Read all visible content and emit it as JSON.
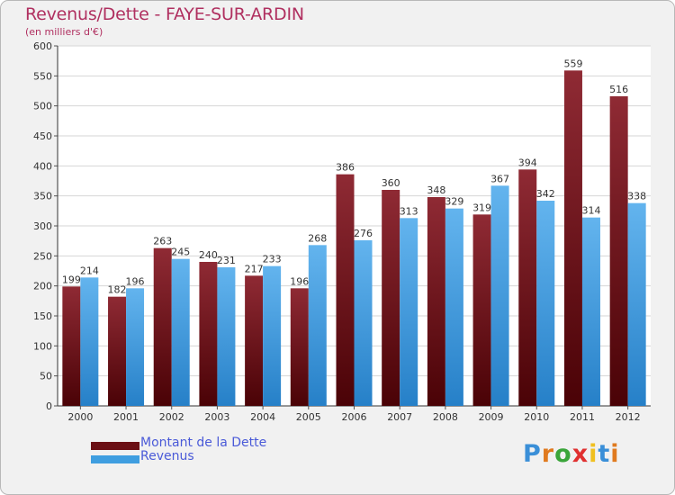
{
  "header": {
    "title": "Revenus/Dette - FAYE-SUR-ARDIN",
    "subtitle": "(en milliers d'€)"
  },
  "legend": {
    "items": [
      {
        "label": "Montant de la Dette",
        "color": "#6b0f14"
      },
      {
        "label": "Revenus",
        "color": "#3f9ee0"
      }
    ]
  },
  "logo": {
    "text": "Proxiti"
  },
  "chart_data": {
    "type": "bar",
    "title": "Revenus/Dette - FAYE-SUR-ARDIN",
    "ylabel": "(en milliers d'€)",
    "xlabel": "",
    "categories": [
      "2000",
      "2001",
      "2002",
      "2003",
      "2004",
      "2005",
      "2006",
      "2007",
      "2008",
      "2009",
      "2010",
      "2011",
      "2012"
    ],
    "series": [
      {
        "name": "Montant de la Dette",
        "values": [
          199,
          182,
          263,
          240,
          217,
          196,
          386,
          360,
          348,
          319,
          394,
          559,
          516
        ]
      },
      {
        "name": "Revenus",
        "values": [
          214,
          196,
          245,
          231,
          233,
          268,
          276,
          313,
          329,
          367,
          342,
          314,
          338
        ]
      }
    ],
    "ylim": [
      0,
      600
    ],
    "yticks": [
      "0",
      "50",
      "100",
      "150",
      "200",
      "250",
      "300",
      "350",
      "400",
      "450",
      "500",
      "550",
      "600"
    ],
    "grid": true
  }
}
